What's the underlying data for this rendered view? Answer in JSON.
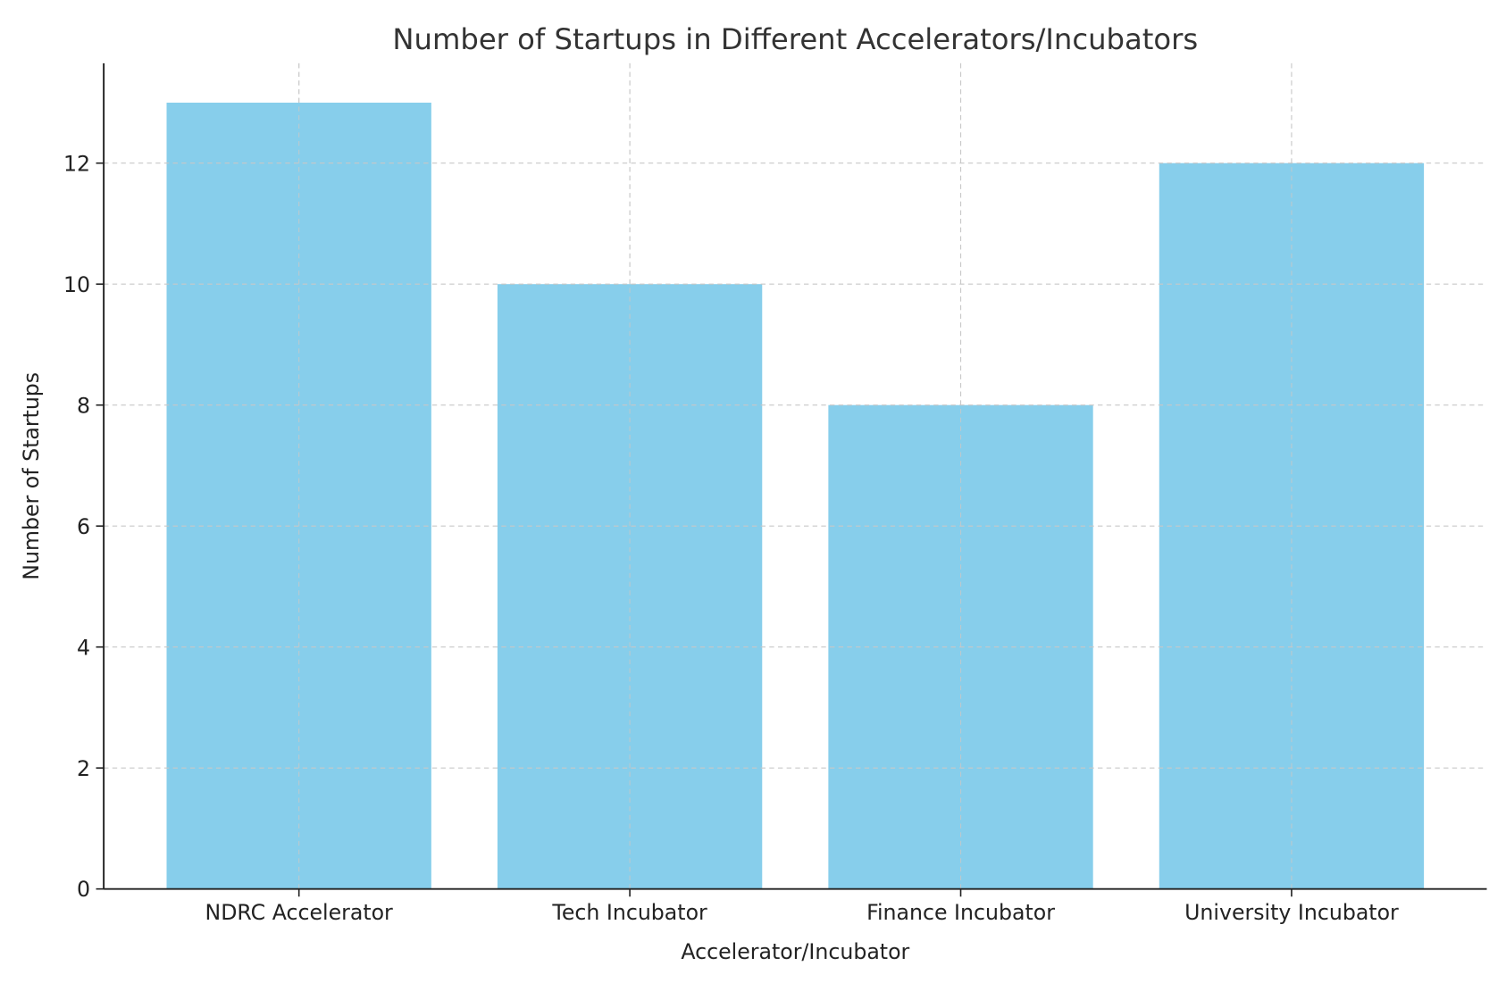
{
  "chart_data": {
    "type": "bar",
    "title": "Number of Startups in Different Accelerators/Incubators",
    "xlabel": "Accelerator/Incubator",
    "ylabel": "Number of Startups",
    "categories": [
      "NDRC Accelerator",
      "Tech Incubator",
      "Finance Incubator",
      "University Incubator"
    ],
    "values": [
      13,
      10,
      8,
      12
    ],
    "ylim": [
      0,
      13.65
    ],
    "yticks": [
      0,
      2,
      4,
      6,
      8,
      10,
      12
    ],
    "grid": true,
    "bar_color": "#87CEEB"
  }
}
